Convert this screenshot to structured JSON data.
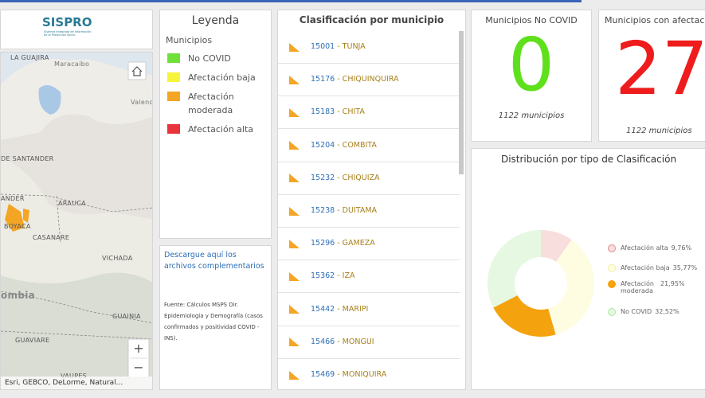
{
  "logo": {
    "name": "SISPRO",
    "subtitle": "Sistema Integrado de Información de la Protección Social"
  },
  "map": {
    "labels": [
      "LA GUAJIRA",
      "Maracaibo",
      "Valenc",
      "DE SANTANDER",
      "ANDER",
      "ARAUCA",
      "BOYACA",
      "CASANARE",
      "VICHADA",
      "ombia",
      "GUAINIA",
      "GUAVIARE",
      "VAUPES"
    ],
    "attribution": "Esri, GEBCO, DeLorme, Natural...",
    "zoom_in": "+",
    "zoom_out": "−"
  },
  "legend": {
    "title": "Leyenda",
    "subtitle": "Municipios",
    "items": [
      {
        "label": "No COVID",
        "color": "#6fe13a"
      },
      {
        "label": "Afectación baja",
        "color": "#f7f43a"
      },
      {
        "label": "Afectación moderada",
        "color": "#f5a524"
      },
      {
        "label": "Afectación alta",
        "color": "#e8343a"
      }
    ]
  },
  "downloads": {
    "link": "Descargue aquí los archivos complementarios",
    "source": "Fuente: Cálculos MSPS Dir. Epidemiología y Demografía (casos confirmados y positividad COVID - INS)."
  },
  "list": {
    "title": "Clasificación por municipio",
    "rows": [
      {
        "code": "15001",
        "name": "- TUNJA"
      },
      {
        "code": "15176",
        "name": "- CHIQUINQUIRA"
      },
      {
        "code": "15183",
        "name": "- CHITA"
      },
      {
        "code": "15204",
        "name": "- COMBITA"
      },
      {
        "code": "15232",
        "name": "- CHIQUIZA"
      },
      {
        "code": "15238",
        "name": "- DUITAMA"
      },
      {
        "code": "15296",
        "name": "- GAMEZA"
      },
      {
        "code": "15362",
        "name": "- IZA"
      },
      {
        "code": "15442",
        "name": "- MARIPI"
      },
      {
        "code": "15466",
        "name": "- MONGUI"
      },
      {
        "code": "15469",
        "name": "- MONIQUIRA"
      }
    ]
  },
  "kpis": [
    {
      "title": "Municipios No COVID",
      "value": 0,
      "color": "#5fe01c",
      "caption": "1122 municipios"
    },
    {
      "title": "Municipios con afectación",
      "value": 27,
      "color": "#ee1c1c",
      "caption": "1122 municipios"
    }
  ],
  "chart_data": {
    "type": "donut",
    "title": "Distribución por tipo de Clasificación",
    "categories": [
      "Afectación alta",
      "Afectación baja",
      "Afectación moderada",
      "No COVID"
    ],
    "values": [
      9.76,
      35.77,
      21.95,
      32.52
    ],
    "value_labels": [
      "9,76%",
      "35,77%",
      "21,95%",
      "32,52%"
    ],
    "colors": [
      "#f9dede",
      "#fefde2",
      "#f5a20f",
      "#e6f8e1"
    ],
    "stroke_colors": [
      "#e48a8a",
      "#f2ef9c",
      "#f5a20f",
      "#a9eb9c"
    ]
  }
}
